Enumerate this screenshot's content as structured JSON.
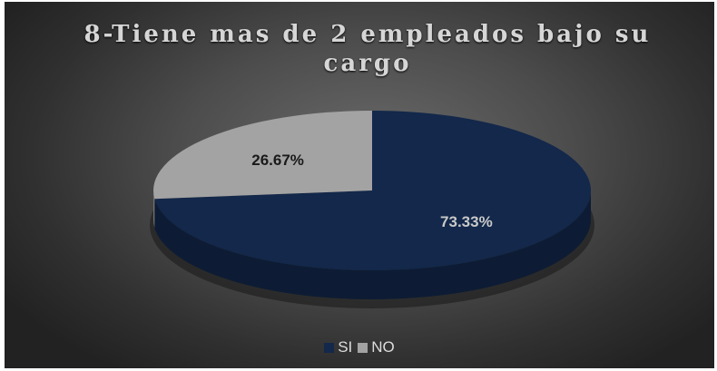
{
  "chart_data": {
    "type": "pie",
    "title": "8-Tiene mas de 2 empleados bajo su cargo",
    "categories": [
      "SI",
      "NO"
    ],
    "values": [
      73.33,
      26.67
    ],
    "data_labels": [
      "73.33%",
      "26.67%"
    ],
    "colors": [
      "#13284a",
      "#a3a3a3"
    ],
    "label_colors": [
      "#c9c9c9",
      "#1a1a1a"
    ],
    "legend_position": "bottom",
    "style": "3d"
  }
}
